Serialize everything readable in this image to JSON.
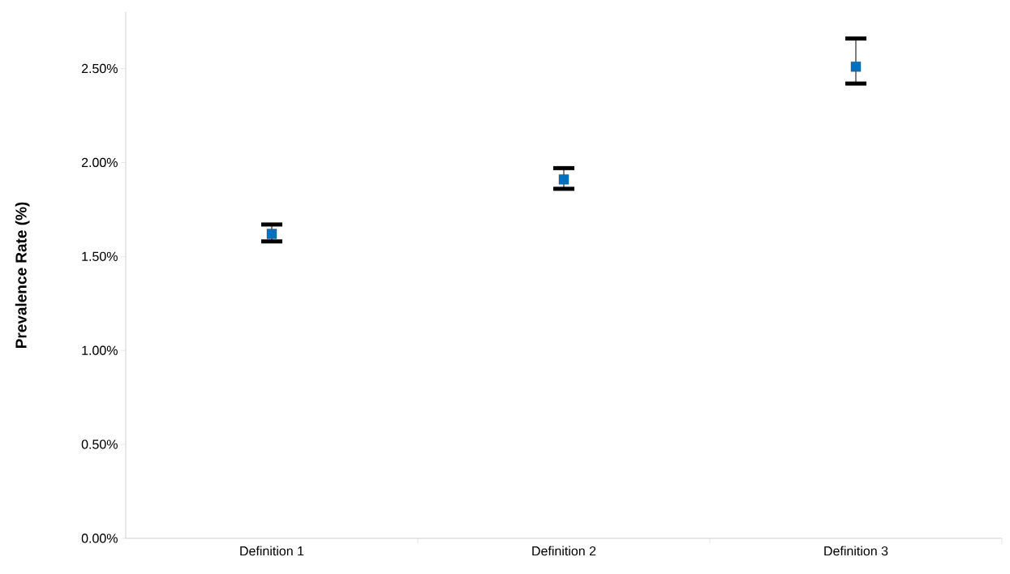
{
  "chart_data": {
    "type": "scatter",
    "ylabel": "Prevalence Rate (%)",
    "categories": [
      "Definition 1",
      "Definition 2",
      "Definition 3"
    ],
    "series": [
      {
        "color": "#0070c0",
        "values": [
          1.62,
          1.91,
          2.51
        ],
        "errors": [
          [
            1.58,
            1.67
          ],
          [
            1.86,
            1.97
          ],
          [
            2.42,
            2.66
          ]
        ]
      }
    ],
    "ylim": [
      0,
      2.8
    ],
    "yticks": [
      {
        "value": 0,
        "label": "0.00%"
      },
      {
        "value": 0.5,
        "label": "0.50%"
      },
      {
        "value": 1,
        "label": "1.00%"
      },
      {
        "value": 1.5,
        "label": "1.50%"
      },
      {
        "value": 2,
        "label": "2.00%"
      },
      {
        "value": 2.5,
        "label": "2.50%"
      }
    ],
    "grid": false,
    "marker": "square"
  }
}
